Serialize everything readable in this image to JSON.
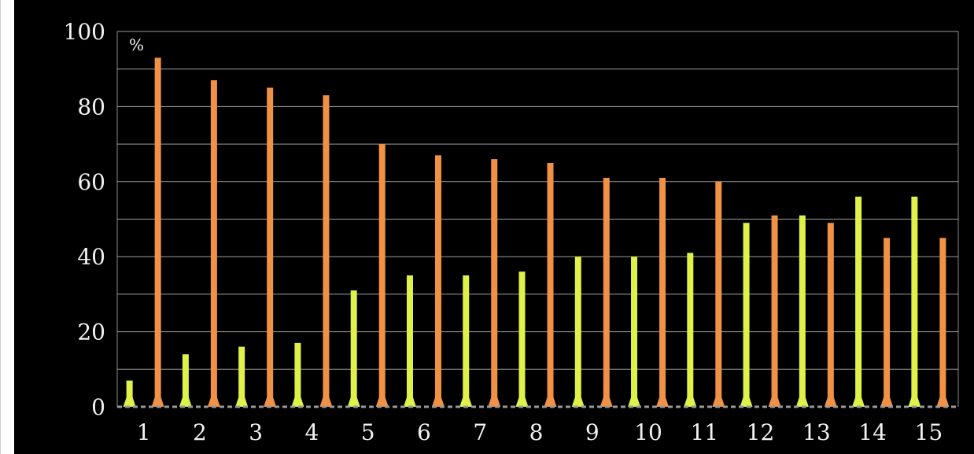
{
  "chart_data": {
    "type": "bar",
    "unit_label": "%",
    "categories": [
      "1",
      "2",
      "3",
      "4",
      "5",
      "6",
      "7",
      "8",
      "9",
      "10",
      "11",
      "12",
      "13",
      "14",
      "15"
    ],
    "series": [
      {
        "color": "#dff24a",
        "values": [
          7,
          14,
          16,
          17,
          31,
          35,
          35,
          36,
          40,
          40,
          41,
          49,
          51,
          56,
          56
        ]
      },
      {
        "color": "#f09145",
        "values": [
          93,
          87,
          85,
          83,
          70,
          67,
          66,
          65,
          61,
          61,
          60,
          51,
          49,
          45,
          45
        ]
      }
    ],
    "ylim": [
      0,
      100
    ],
    "yticks": [
      "0",
      "20",
      "40",
      "60",
      "80",
      "100"
    ],
    "grid": true,
    "legend": "none"
  }
}
